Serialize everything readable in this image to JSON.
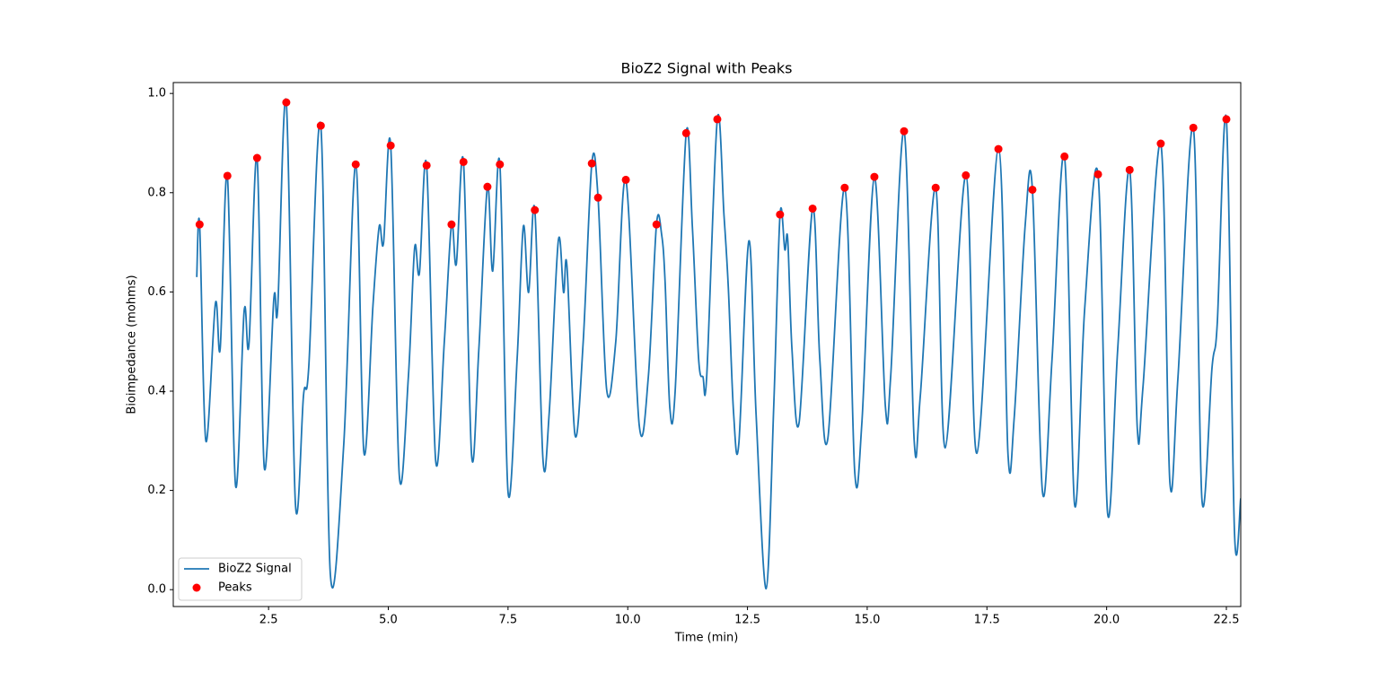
{
  "chart_data": {
    "type": "line",
    "title": "BioZ2 Signal with Peaks",
    "x_label": "Time (min)",
    "y_label": "Bioimpedance (mohms)",
    "xlim": [
      0.51,
      22.8
    ],
    "ylim": [
      -0.034,
      1.022
    ],
    "xticks": [
      2.5,
      {
        "value": 5,
        "label": "5.0"
      },
      7.5,
      {
        "value": 10,
        "label": "10.0"
      },
      12.5,
      {
        "value": 15,
        "label": "15.0"
      },
      17.5,
      {
        "value": 20,
        "label": "20.0"
      },
      22.5
    ],
    "yticks": [
      {
        "value": 0,
        "label": "0.0"
      },
      0.2,
      0.4,
      0.6,
      0.8,
      {
        "value": 1,
        "label": "1.0"
      }
    ],
    "legend": "lower left",
    "series": [
      {
        "name": "BioZ2 Signal",
        "type": "line",
        "color": "#1f77b4",
        "x": [
          1.0,
          1.06,
          1.19,
          1.39,
          1.49,
          1.64,
          1.81,
          1.99,
          2.09,
          2.26,
          2.41,
          2.61,
          2.69,
          2.87,
          3.06,
          3.23,
          3.34,
          3.59,
          3.79,
          4.07,
          4.32,
          4.49,
          4.68,
          4.81,
          4.9,
          5.05,
          5.23,
          5.42,
          5.55,
          5.65,
          5.8,
          5.99,
          6.17,
          6.32,
          6.42,
          6.57,
          6.74,
          6.89,
          7.07,
          7.18,
          7.33,
          7.5,
          7.69,
          7.82,
          7.93,
          8.06,
          8.23,
          8.36,
          8.55,
          8.66,
          8.73,
          8.9,
          9.07,
          9.25,
          9.38,
          9.56,
          9.75,
          9.96,
          10.24,
          10.43,
          10.6,
          10.71,
          10.78,
          10.88,
          10.99,
          11.22,
          11.35,
          11.48,
          11.57,
          11.65,
          11.87,
          12.01,
          12.1,
          12.21,
          12.32,
          12.53,
          12.68,
          12.89,
          13.05,
          13.18,
          13.28,
          13.34,
          13.43,
          13.58,
          13.86,
          14.01,
          14.18,
          14.53,
          14.74,
          14.89,
          15.15,
          15.38,
          15.49,
          15.77,
          15.98,
          16.11,
          16.43,
          16.63,
          17.06,
          17.29,
          17.74,
          17.94,
          18.07,
          18.3,
          18.45,
          18.66,
          18.86,
          19.12,
          19.33,
          19.54,
          19.82,
          20.02,
          20.23,
          20.48,
          20.64,
          20.76,
          21.13,
          21.32,
          21.49,
          21.81,
          21.99,
          22.2,
          22.31,
          22.5,
          22.67,
          22.8
        ],
        "values": [
          0.63,
          0.736,
          0.3,
          0.577,
          0.486,
          0.834,
          0.21,
          0.562,
          0.494,
          0.87,
          0.246,
          0.586,
          0.566,
          0.982,
          0.174,
          0.392,
          0.45,
          0.935,
          0.031,
          0.293,
          0.857,
          0.277,
          0.573,
          0.732,
          0.698,
          0.895,
          0.23,
          0.43,
          0.689,
          0.638,
          0.855,
          0.259,
          0.5,
          0.736,
          0.656,
          0.862,
          0.27,
          0.483,
          0.812,
          0.642,
          0.857,
          0.197,
          0.465,
          0.732,
          0.599,
          0.765,
          0.262,
          0.356,
          0.703,
          0.599,
          0.653,
          0.311,
          0.5,
          0.859,
          0.79,
          0.403,
          0.5,
          0.826,
          0.331,
          0.429,
          0.736,
          0.714,
          0.62,
          0.365,
          0.4,
          0.92,
          0.73,
          0.465,
          0.429,
          0.432,
          0.948,
          0.754,
          0.609,
          0.356,
          0.295,
          0.703,
          0.353,
          0.002,
          0.374,
          0.756,
          0.685,
          0.707,
          0.483,
          0.338,
          0.768,
          0.465,
          0.306,
          0.81,
          0.237,
          0.338,
          0.832,
          0.369,
          0.429,
          0.924,
          0.302,
          0.392,
          0.81,
          0.286,
          0.835,
          0.275,
          0.888,
          0.273,
          0.347,
          0.736,
          0.806,
          0.197,
          0.465,
          0.873,
          0.172,
          0.564,
          0.837,
          0.154,
          0.483,
          0.846,
          0.325,
          0.41,
          0.899,
          0.217,
          0.429,
          0.931,
          0.181,
          0.447,
          0.537,
          0.948,
          0.114,
          0.184
        ]
      },
      {
        "name": "Peaks",
        "type": "scatter",
        "color": "#ff0000",
        "x": [
          1.06,
          1.64,
          2.26,
          2.87,
          3.59,
          4.32,
          5.05,
          5.8,
          6.32,
          6.57,
          7.07,
          7.33,
          8.06,
          9.25,
          9.38,
          9.96,
          10.6,
          11.22,
          11.87,
          13.18,
          13.86,
          14.53,
          15.15,
          15.77,
          16.43,
          17.06,
          17.74,
          18.45,
          19.12,
          19.82,
          20.48,
          21.13,
          21.81,
          22.5
        ],
        "values": [
          0.736,
          0.834,
          0.87,
          0.982,
          0.935,
          0.857,
          0.895,
          0.855,
          0.736,
          0.862,
          0.812,
          0.857,
          0.765,
          0.859,
          0.79,
          0.826,
          0.736,
          0.92,
          0.948,
          0.756,
          0.768,
          0.81,
          0.832,
          0.924,
          0.81,
          0.835,
          0.888,
          0.806,
          0.873,
          0.837,
          0.846,
          0.899,
          0.931,
          0.948
        ]
      }
    ]
  }
}
